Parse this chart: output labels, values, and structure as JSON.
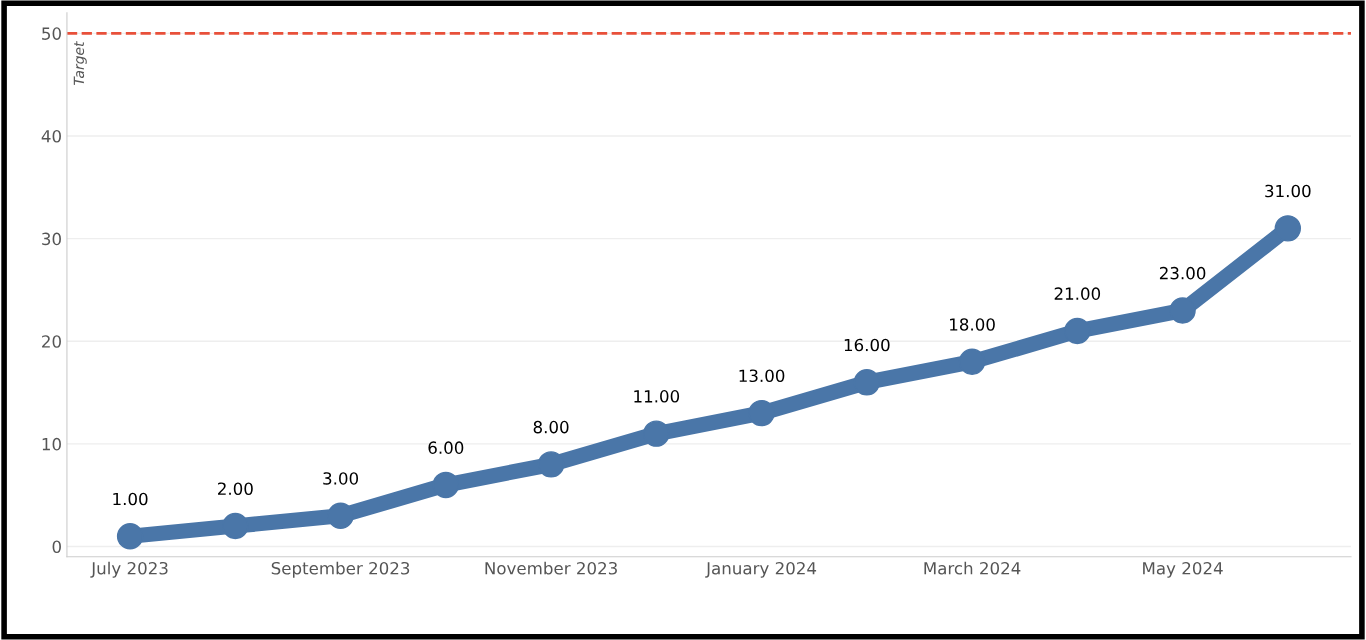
{
  "chart_data": {
    "type": "line",
    "categories": [
      "July 2023",
      null,
      "September 2023",
      null,
      "November 2023",
      null,
      "January 2024",
      null,
      "March 2024",
      null,
      "May 2024",
      null
    ],
    "series": [
      {
        "color": "#4a76a8",
        "values": [
          1,
          2,
          3,
          6,
          8,
          11,
          13,
          16,
          18,
          21,
          23,
          31
        ],
        "value_labels": [
          "1.00",
          "2.00",
          "3.00",
          "6.00",
          "8.00",
          "11.00",
          "13.00",
          "16.00",
          "18.00",
          "21.00",
          "23.00",
          "31.00"
        ]
      }
    ],
    "ylim": [
      -1,
      52
    ],
    "yticks": [
      0,
      10,
      20,
      30,
      40,
      50
    ],
    "grid": "y",
    "marker": "circle",
    "line_style": "solid",
    "legend": false,
    "ref_lines": [
      {
        "axis": "y",
        "value": 50,
        "label": "Target",
        "color": "#e8503a",
        "line_style": "dashed"
      }
    ]
  }
}
